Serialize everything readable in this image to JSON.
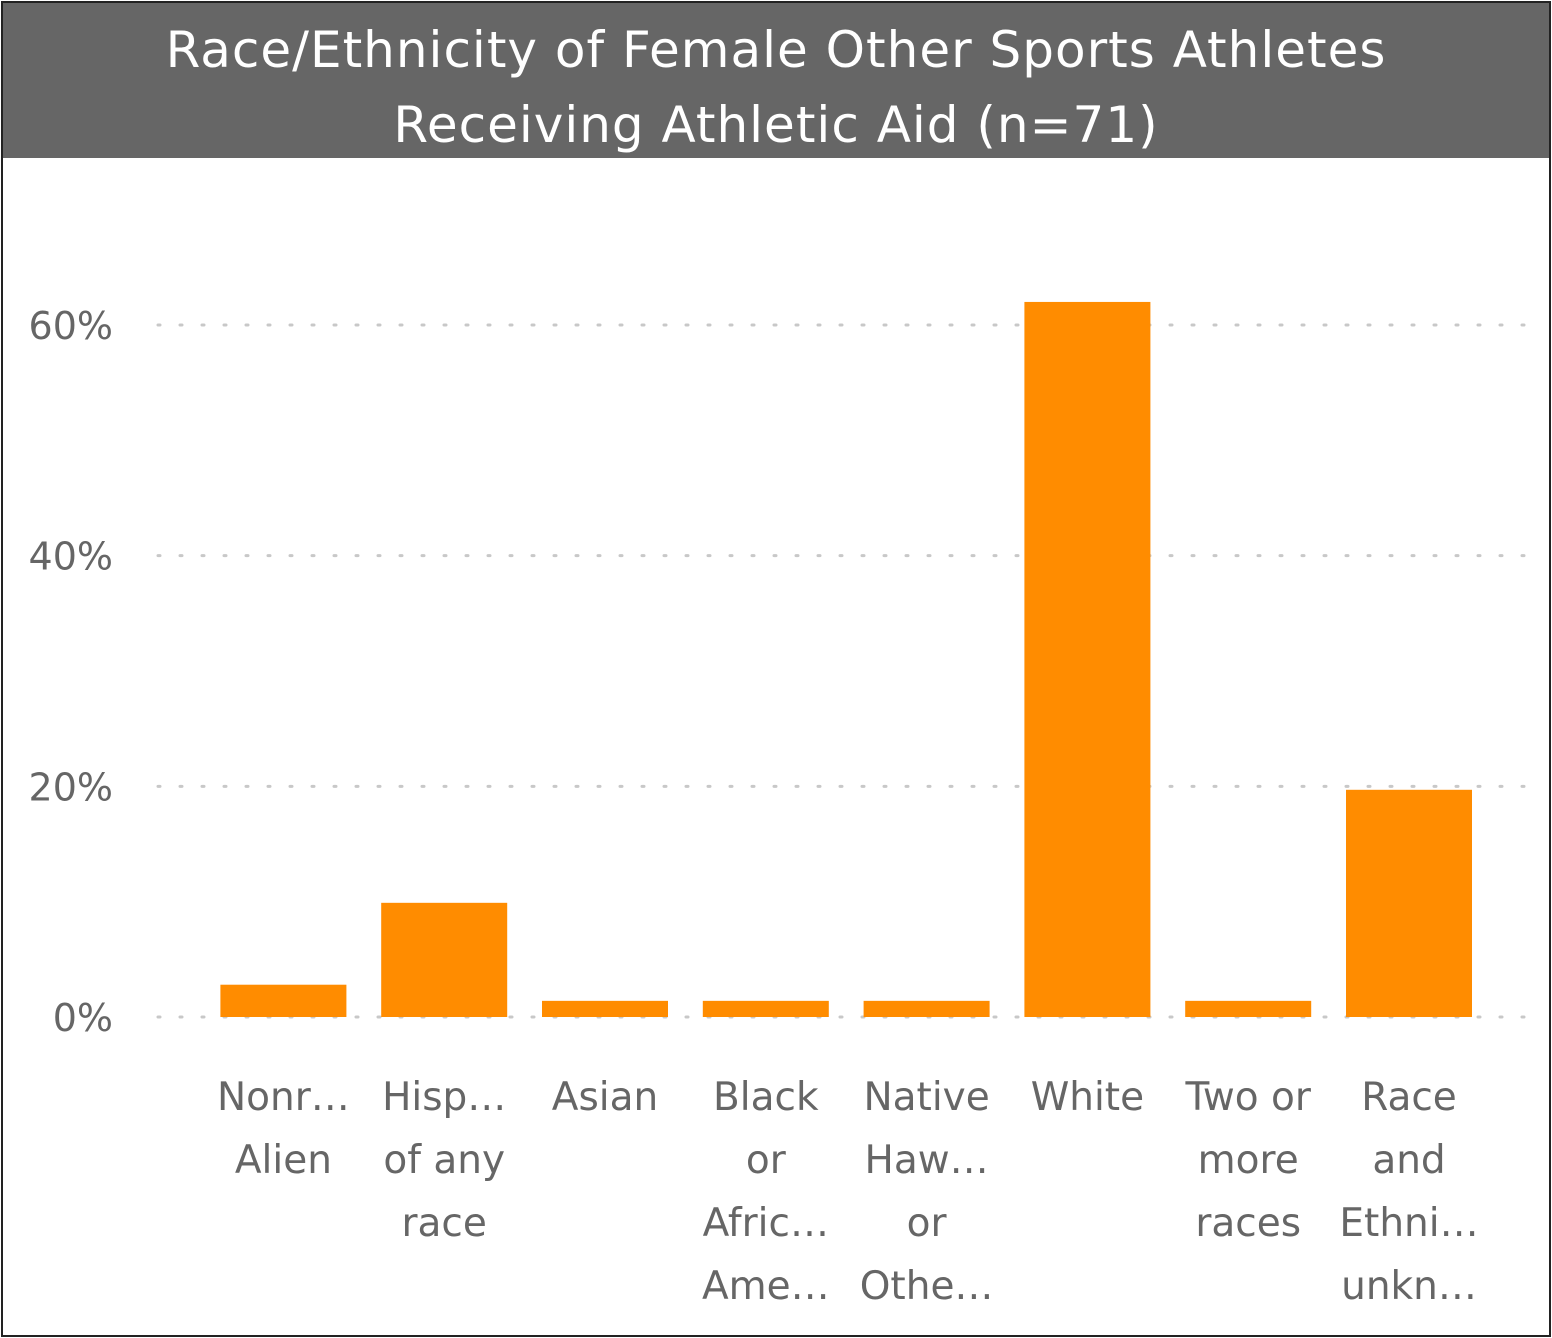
{
  "chart_data": {
    "type": "bar",
    "title_lines": [
      "Race/Ethnicity of Female Other Sports Athletes",
      "Receiving Athletic Aid (n=71)"
    ],
    "categories": [
      [
        "Nonr…",
        "Alien"
      ],
      [
        "Hisp…",
        "of any",
        "race"
      ],
      [
        "Asian"
      ],
      [
        "Black",
        "or",
        "Afric…",
        "Ame…"
      ],
      [
        "Native",
        "Haw…",
        "or",
        "Othe…"
      ],
      [
        "White"
      ],
      [
        "Two or",
        "more",
        "races"
      ],
      [
        "Race",
        "and",
        "Ethni…",
        "unkn…"
      ]
    ],
    "values": [
      2.8,
      9.9,
      1.4,
      1.4,
      1.4,
      62.0,
      1.4,
      19.7
    ],
    "yticks": [
      "0%",
      "20%",
      "40%",
      "60%"
    ],
    "ylim": [
      0,
      60
    ],
    "grid": true,
    "colors": {
      "bar": "#FF8C00",
      "title_bg": "#666666",
      "title_text": "#FFFFFF",
      "axis_text": "#666666",
      "grid": "#C8C8C8"
    }
  }
}
